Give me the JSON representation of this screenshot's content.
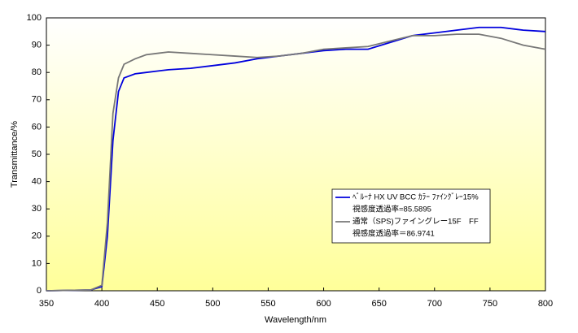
{
  "chart_data": {
    "type": "line",
    "xlabel": "Wavelength/nm",
    "ylabel": "Transmittance/%",
    "x": [
      350,
      390,
      400,
      405,
      410,
      415,
      420,
      430,
      440,
      450,
      460,
      480,
      500,
      520,
      540,
      560,
      580,
      600,
      620,
      640,
      660,
      680,
      700,
      720,
      740,
      760,
      780,
      800
    ],
    "series": [
      {
        "name": "ﾍﾞﾙｰﾅ HX UV BCC ｶﾗｰ ﾌｧｲﾝｸﾞﾚｰ15%",
        "color": "#0000dd",
        "values": [
          0,
          0.3,
          1.5,
          20,
          55,
          73,
          78,
          79.5,
          80,
          80.5,
          81,
          81.5,
          82.5,
          83.5,
          85,
          86,
          87,
          88,
          88.5,
          88.5,
          91,
          93.5,
          94.5,
          95.5,
          96.5,
          96.5,
          95.5,
          95
        ]
      },
      {
        "name": "通常（SPS)ファイングレー15F　FF",
        "color": "#777777",
        "values": [
          0,
          0.3,
          2,
          25,
          65,
          78,
          83,
          85,
          86.5,
          87,
          87.5,
          87,
          86.5,
          86,
          85.5,
          86,
          87,
          88.5,
          89,
          89.5,
          91.5,
          93.5,
          93.5,
          94,
          94,
          92.5,
          90,
          88.5
        ]
      }
    ],
    "annotations": [
      "視感度透過率=85.5895",
      "視感度透過率＝86.9741"
    ],
    "xlim": [
      350,
      800
    ],
    "xticks": [
      350,
      400,
      450,
      500,
      550,
      600,
      650,
      700,
      750,
      800
    ],
    "ylim": [
      0,
      100
    ],
    "yticks": [
      0,
      10,
      20,
      30,
      40,
      50,
      60,
      70,
      80,
      90,
      100
    ],
    "grid": false
  }
}
